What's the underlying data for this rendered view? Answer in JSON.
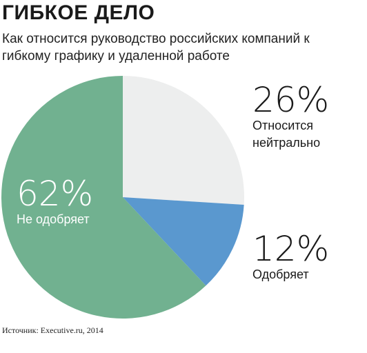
{
  "header": {
    "title": "ГИБКОЕ ДЕЛО",
    "subtitle": "Как относится руководство российских компаний к гибкому графику и удаленной работе"
  },
  "source": "Источник: Executive.ru, 2014",
  "chart_data": {
    "type": "pie",
    "slices": [
      {
        "value": 26,
        "percent_label": "26%",
        "label_lines": [
          "Относится",
          "нейтрально"
        ],
        "color": "#edeeee",
        "text_color": "#1a1a1a"
      },
      {
        "value": 12,
        "percent_label": "12%",
        "label_lines": [
          "Одобряет"
        ],
        "color": "#5a98cf",
        "text_color": "#1a1a1a"
      },
      {
        "value": 62,
        "percent_label": "62%",
        "label_lines": [
          "Не одобряет"
        ],
        "color": "#71b190",
        "text_color": "#ffffff"
      }
    ],
    "start_angle_deg": 0,
    "direction": "clockwise"
  }
}
